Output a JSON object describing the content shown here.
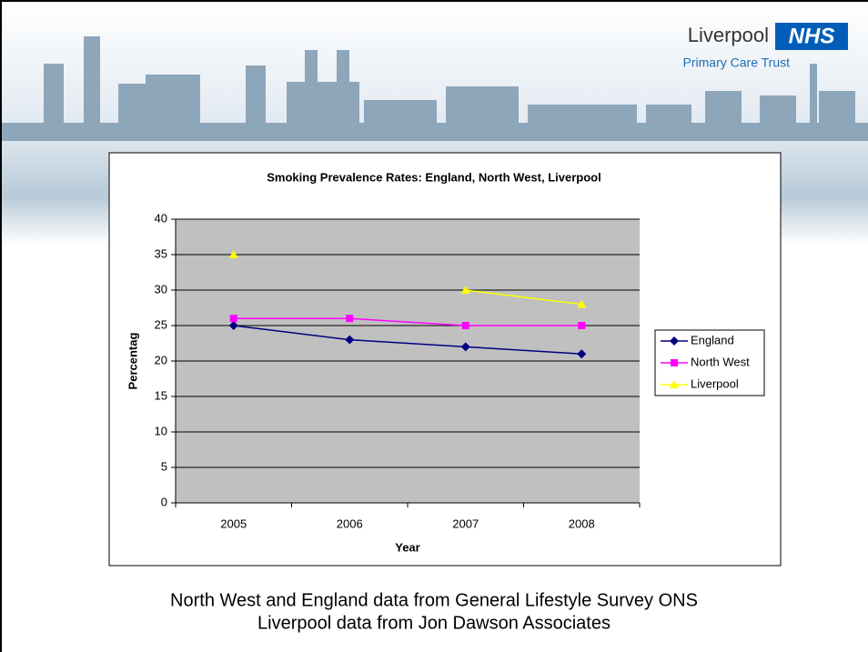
{
  "header": {
    "logo": "Liverpool",
    "badge": "NHS",
    "subtitle": "Primary Care Trust"
  },
  "chart_data": {
    "type": "line",
    "title": "Smoking Prevalence Rates: England, North West, Liverpool",
    "categories": [
      "2005",
      "2006",
      "2007",
      "2008"
    ],
    "series": [
      {
        "name": "England",
        "color": "#000080",
        "marker": "diamond",
        "values": [
          25,
          23,
          22,
          21
        ]
      },
      {
        "name": "North West",
        "color": "#ff00ff",
        "marker": "square",
        "values": [
          26,
          26,
          25,
          25
        ]
      },
      {
        "name": "Liverpool",
        "color": "#ffff00",
        "marker": "triangle",
        "values": [
          35,
          null,
          30,
          28
        ]
      }
    ],
    "ylim": [
      0,
      40
    ],
    "yticks": [
      0,
      5,
      10,
      15,
      20,
      25,
      30,
      35,
      40
    ],
    "y_label": "Percentag",
    "x_label": "Year",
    "grid": true,
    "legend": "right"
  },
  "footer": {
    "lines": [
      "North West and England data from General Lifestyle Survey ONS",
      "Liverpool data from Jon Dawson Associates"
    ]
  }
}
